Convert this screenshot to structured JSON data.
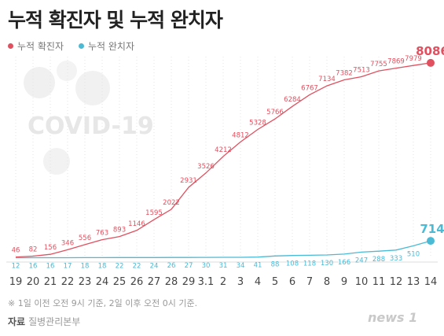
{
  "header": {
    "title": "누적 확진자 및 누적 완치자"
  },
  "legend": [
    {
      "label": "누적 확진자",
      "color": "#e0505f"
    },
    {
      "label": "누적 완치자",
      "color": "#4bbad5"
    }
  ],
  "watermark": {
    "text": "COVID-19"
  },
  "footer": {
    "note": "※ 1일 이전 오전 9시 기준, 2일 이후 오전 0시 기준.",
    "source_label": "자료",
    "source_text": "질병관리본부",
    "logo": "news 1"
  },
  "chart_data": {
    "type": "line",
    "categories": [
      "19",
      "20",
      "21",
      "22",
      "23",
      "24",
      "25",
      "26",
      "27",
      "28",
      "29",
      "3.1",
      "2",
      "3",
      "4",
      "5",
      "6",
      "7",
      "8",
      "9",
      "10",
      "11",
      "12",
      "13",
      "14"
    ],
    "series": [
      {
        "name": "누적 확진자",
        "color": "#e0505f",
        "values": [
          46,
          82,
          156,
          346,
          556,
          763,
          893,
          1146,
          1595,
          2022,
          2931,
          3526,
          4212,
          4812,
          5328,
          5766,
          6284,
          6767,
          7134,
          7382,
          7513,
          7755,
          7869,
          7979,
          8086
        ]
      },
      {
        "name": "누적 완치자",
        "color": "#4bbad5",
        "values": [
          12,
          16,
          16,
          17,
          18,
          18,
          22,
          22,
          24,
          26,
          27,
          30,
          31,
          34,
          41,
          88,
          108,
          118,
          130,
          166,
          247,
          288,
          333,
          510,
          714
        ]
      }
    ],
    "ylim": [
      0,
      8800
    ],
    "grid": true
  }
}
